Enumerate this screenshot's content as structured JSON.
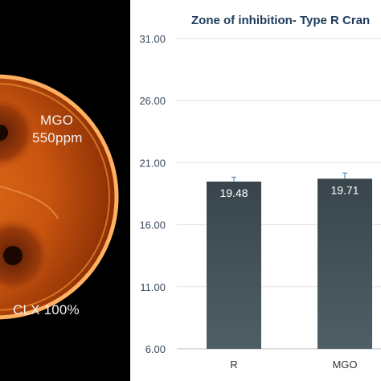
{
  "photo": {
    "labels": {
      "mgo_name": "MGO",
      "mgo_dose": "550ppm",
      "clx": "CLX 100%"
    }
  },
  "chart_data": {
    "type": "bar",
    "title": "Zone of inhibition- Type R Cran",
    "xlabel": "",
    "ylabel": "",
    "categories": [
      "R",
      "MGO"
    ],
    "values": [
      19.48,
      19.71
    ],
    "value_labels": [
      "19.48",
      "19.71"
    ],
    "error": [
      0.35,
      0.45
    ],
    "ylim": [
      6.0,
      31.0
    ],
    "yticks": [
      6.0,
      11.0,
      16.0,
      21.0,
      26.0,
      31.0
    ],
    "ytick_labels": [
      "6.00",
      "11.00",
      "16.00",
      "21.00",
      "26.00",
      "31.00"
    ],
    "grid": true,
    "legend": "none",
    "colors": {
      "bar_top": "#39454c",
      "bar_bottom": "#4f5e66",
      "title": "#1f3a5c",
      "grid": "#e3e3e3",
      "error_bar": "#5b8fbf"
    }
  }
}
